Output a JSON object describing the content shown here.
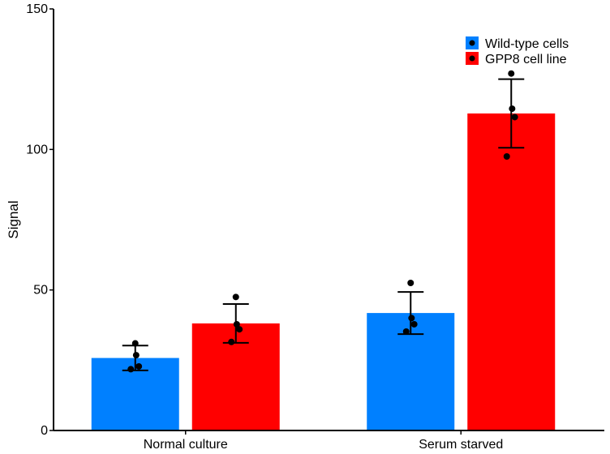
{
  "chart_data": {
    "type": "bar",
    "ylabel": "Signal",
    "xlabel": "",
    "ylim": [
      0,
      150
    ],
    "yticks": [
      0,
      50,
      100,
      150
    ],
    "grid": false,
    "legend_position": "top-right",
    "categories": [
      "Normal culture",
      "Serum starved"
    ],
    "series": [
      {
        "name": "Wild-type cells",
        "color": "#0080FF",
        "values": [
          25.8,
          41.8
        ],
        "error": [
          4.4,
          7.5
        ],
        "points": [
          [
            31.0,
            26.8,
            22.8,
            21.8
          ],
          [
            52.5,
            40.0,
            37.8,
            35.2
          ]
        ]
      },
      {
        "name": "GPP8 cell line",
        "color": "#FF0000",
        "values": [
          38.1,
          112.8
        ],
        "error": [
          6.9,
          12.2
        ],
        "points": [
          [
            47.5,
            37.8,
            36.0,
            31.5
          ],
          [
            127.0,
            114.5,
            111.5,
            97.5
          ]
        ]
      }
    ]
  }
}
